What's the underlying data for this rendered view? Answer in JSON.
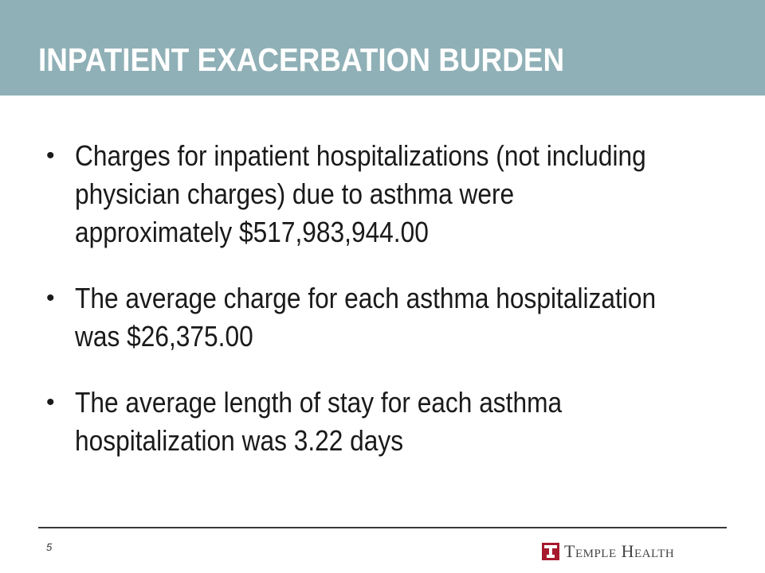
{
  "slide": {
    "title": "INPATIENT EXACERBATION BURDEN",
    "bullets": [
      {
        "text": "Charges for inpatient hospitalizations (not including physician charges) due to asthma were approximately $517,983,944.00"
      },
      {
        "text": "The average charge for each asthma hospitalization was $26,375.00"
      },
      {
        "text": "The average length of stay for each asthma hospitalization was 3.22 days"
      }
    ],
    "bullet_glyph": "•",
    "page_number": "5"
  },
  "footer": {
    "logo_text": "Temple Health",
    "logo_icon": "temple-t-icon"
  },
  "colors": {
    "title_band": "#8fb0b6",
    "title_text": "#ffffff",
    "body_text": "#1a1a1a",
    "logo_red": "#a6192e"
  }
}
